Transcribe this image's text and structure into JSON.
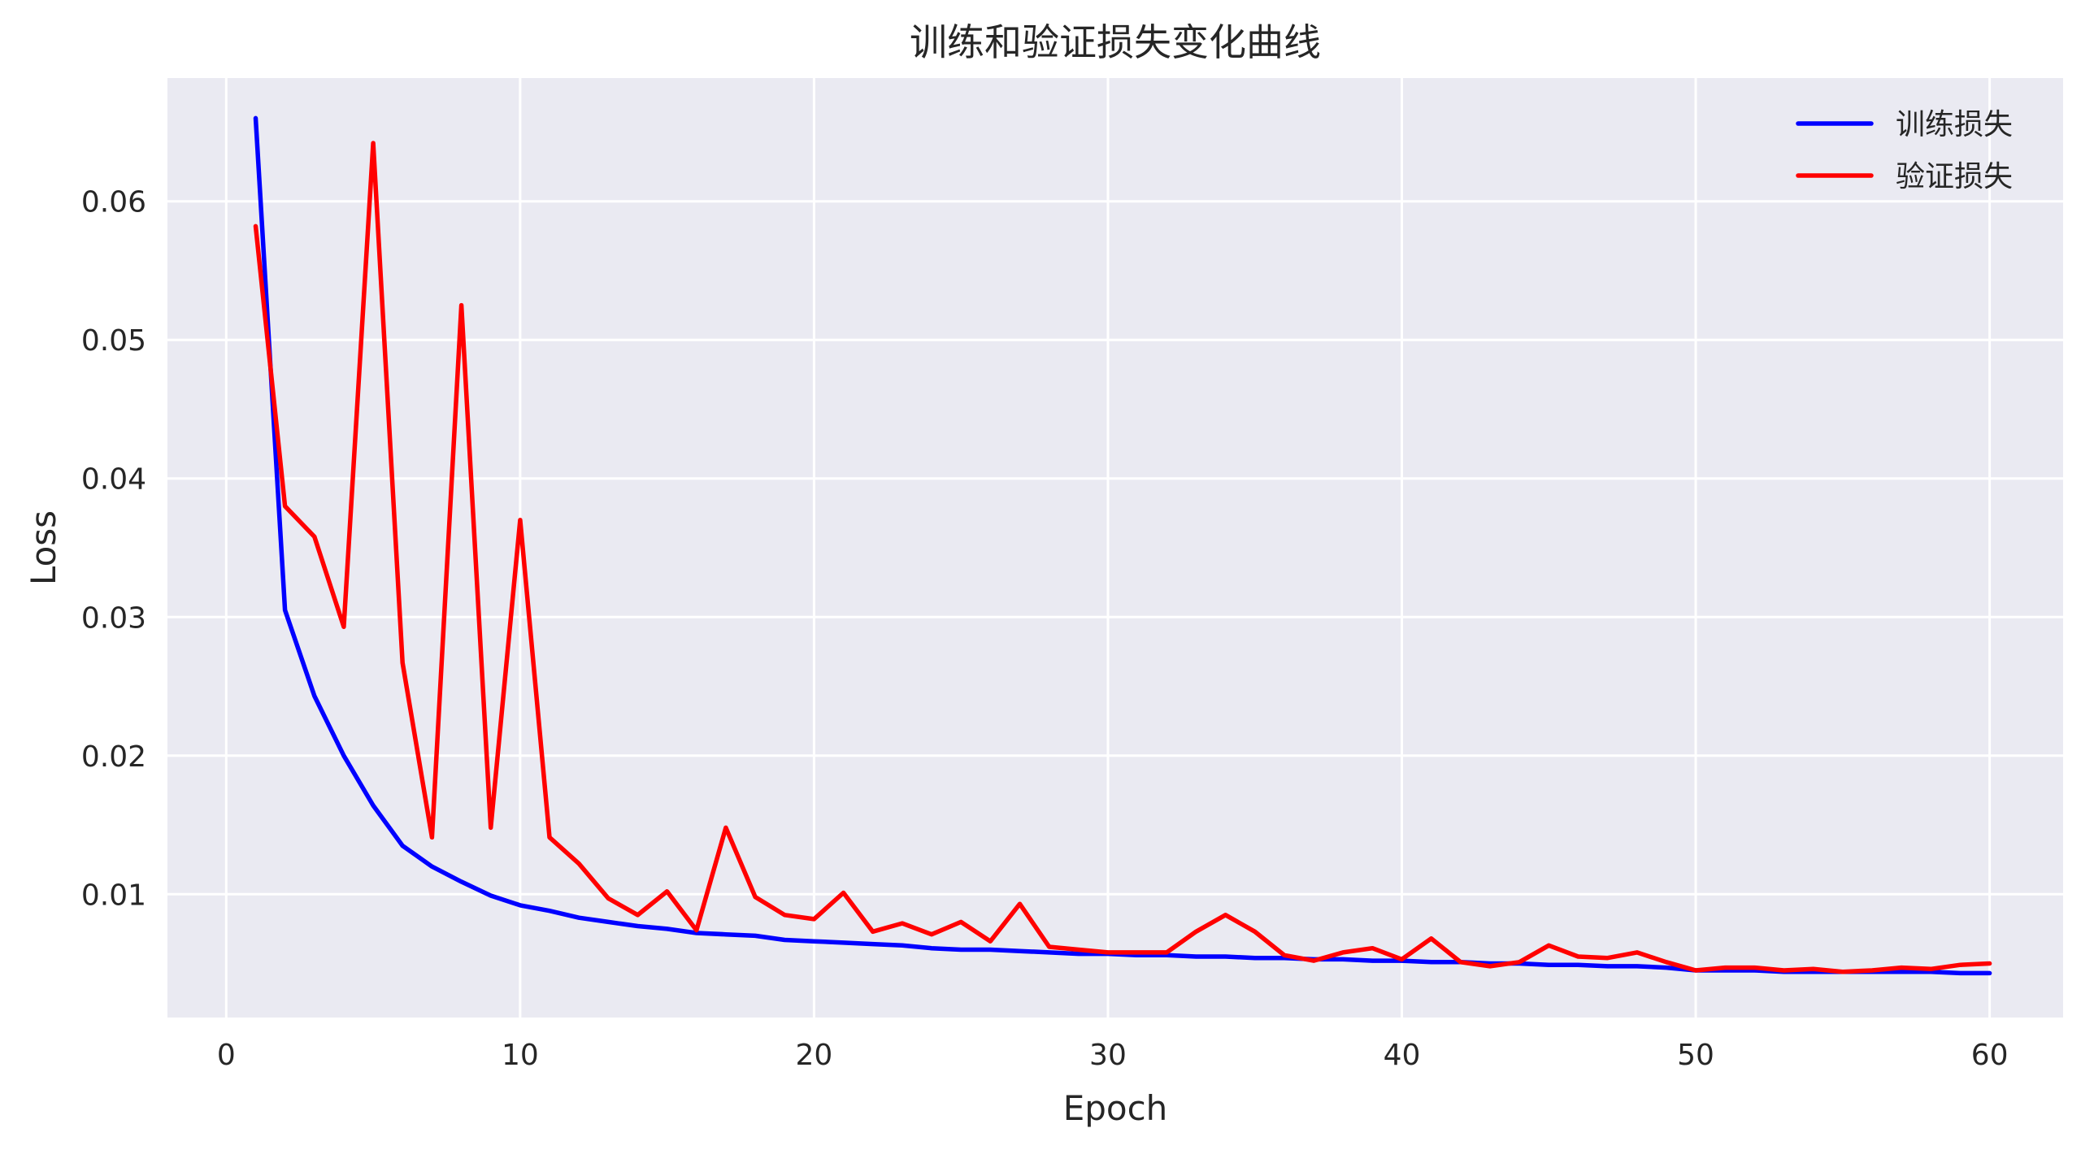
{
  "chart_data": {
    "type": "line",
    "title": "训练和验证损失变化曲线",
    "xlabel": "Epoch",
    "ylabel": "Loss",
    "xlim": [
      -2,
      62.5
    ],
    "ylim": [
      0.0011,
      0.0689
    ],
    "xticks": [
      0,
      10,
      20,
      30,
      40,
      50,
      60
    ],
    "xtick_labels": [
      "0",
      "10",
      "20",
      "30",
      "40",
      "50",
      "60"
    ],
    "yticks": [
      0.01,
      0.02,
      0.03,
      0.04,
      0.05,
      0.06
    ],
    "ytick_labels": [
      "0.01",
      "0.02",
      "0.03",
      "0.04",
      "0.05",
      "0.06"
    ],
    "grid": true,
    "legend_position": "top-right",
    "background_color": "#eaeaf2",
    "grid_color": "#ffffff",
    "x": [
      1,
      2,
      3,
      4,
      5,
      6,
      7,
      8,
      9,
      10,
      11,
      12,
      13,
      14,
      15,
      16,
      17,
      18,
      19,
      20,
      21,
      22,
      23,
      24,
      25,
      26,
      27,
      28,
      29,
      30,
      31,
      32,
      33,
      34,
      35,
      36,
      37,
      38,
      39,
      40,
      41,
      42,
      43,
      44,
      45,
      46,
      47,
      48,
      49,
      50,
      51,
      52,
      53,
      54,
      55,
      56,
      57,
      58,
      59,
      60
    ],
    "series": [
      {
        "name": "训练损失",
        "color": "#0000ff",
        "values": [
          0.066,
          0.0305,
          0.0243,
          0.02,
          0.0164,
          0.0135,
          0.012,
          0.0109,
          0.0099,
          0.0092,
          0.0088,
          0.0083,
          0.008,
          0.0077,
          0.0075,
          0.0072,
          0.0071,
          0.007,
          0.0067,
          0.0066,
          0.0065,
          0.0064,
          0.0063,
          0.0061,
          0.006,
          0.006,
          0.0059,
          0.0058,
          0.0057,
          0.0057,
          0.0056,
          0.0056,
          0.0055,
          0.0055,
          0.0054,
          0.0054,
          0.0053,
          0.0053,
          0.0052,
          0.0052,
          0.0051,
          0.0051,
          0.005,
          0.005,
          0.0049,
          0.0049,
          0.0048,
          0.0048,
          0.0047,
          0.0045,
          0.0045,
          0.0045,
          0.0044,
          0.0044,
          0.0044,
          0.0044,
          0.0044,
          0.0044,
          0.0043,
          0.0043
        ]
      },
      {
        "name": "验证损失",
        "color": "#ff0000",
        "values": [
          0.0582,
          0.038,
          0.0358,
          0.0293,
          0.0642,
          0.0267,
          0.0141,
          0.0525,
          0.0148,
          0.037,
          0.0141,
          0.0122,
          0.0097,
          0.0085,
          0.0102,
          0.0074,
          0.0148,
          0.0098,
          0.0085,
          0.0082,
          0.0101,
          0.0073,
          0.0079,
          0.0071,
          0.008,
          0.0066,
          0.0093,
          0.0062,
          0.006,
          0.0058,
          0.0058,
          0.0058,
          0.0073,
          0.0085,
          0.0073,
          0.0056,
          0.0052,
          0.0058,
          0.0061,
          0.0053,
          0.0068,
          0.0051,
          0.0048,
          0.0051,
          0.0063,
          0.0055,
          0.0054,
          0.0058,
          0.0051,
          0.0045,
          0.0047,
          0.0047,
          0.0045,
          0.0046,
          0.0044,
          0.0045,
          0.0047,
          0.0046,
          0.0049,
          0.005
        ]
      }
    ]
  }
}
